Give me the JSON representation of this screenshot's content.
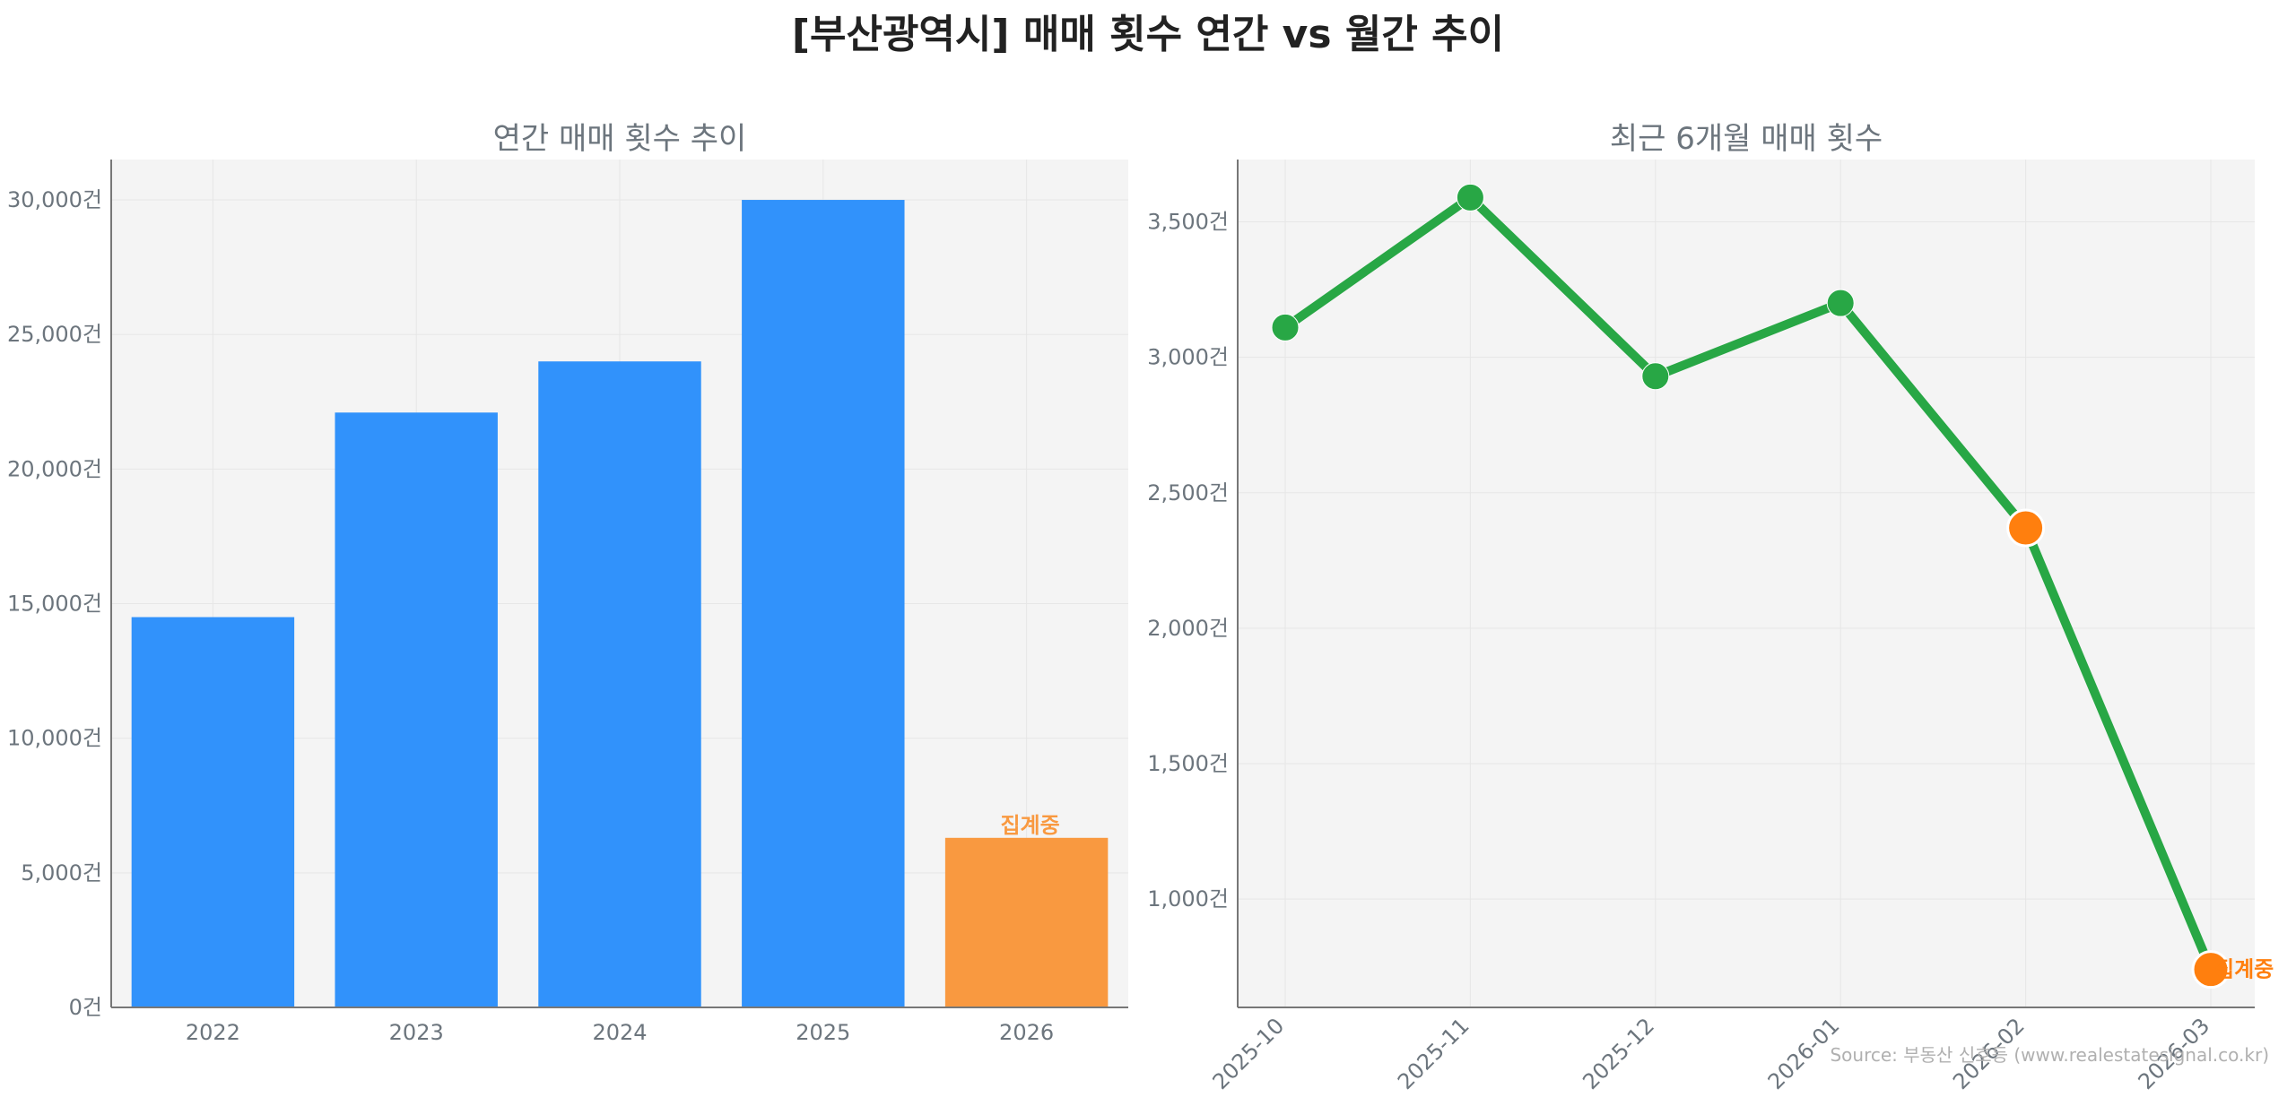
{
  "title": "[부산광역시] 매매 횟수 연간 vs 월간 추이",
  "source": "Source: 부동산 신호등 (www.realestatesignal.co.kr)",
  "colors": {
    "bar": "#3192fb",
    "highlight": "#f99940",
    "line": "#28a745",
    "orange_marker": "#ff7f0e",
    "axis_text": "#6c757d",
    "panel_bg": "#f4f4f4",
    "grid": "#e6e6e6"
  },
  "chart_data": [
    {
      "type": "bar",
      "title": "연간 매매 횟수 추이",
      "categories": [
        "2022",
        "2023",
        "2024",
        "2025",
        "2026"
      ],
      "values": [
        14500,
        22100,
        24000,
        30000,
        6300
      ],
      "highlight_index": 4,
      "annotation": "집계중",
      "ylim": [
        0,
        31500
      ],
      "yticks": [
        0,
        5000,
        10000,
        15000,
        20000,
        25000,
        30000
      ],
      "ytick_labels": [
        "0건",
        "5,000건",
        "10,000건",
        "15,000건",
        "20,000건",
        "25,000건",
        "30,000건"
      ],
      "grid": true
    },
    {
      "type": "line",
      "title": "최근 6개월 매매 횟수",
      "categories": [
        "2025-10",
        "2025-11",
        "2025-12",
        "2026-01",
        "2026-02",
        "2026-03"
      ],
      "values": [
        3110,
        3590,
        2930,
        3200,
        2370,
        740
      ],
      "highlight_indices": [
        4,
        5
      ],
      "annotation": "집계중",
      "ylim": [
        600,
        3730
      ],
      "yticks": [
        1000,
        1500,
        2000,
        2500,
        3000,
        3500
      ],
      "ytick_labels": [
        "1,000건",
        "1,500건",
        "2,000건",
        "2,500건",
        "3,000건",
        "3,500건"
      ],
      "grid": true
    }
  ]
}
